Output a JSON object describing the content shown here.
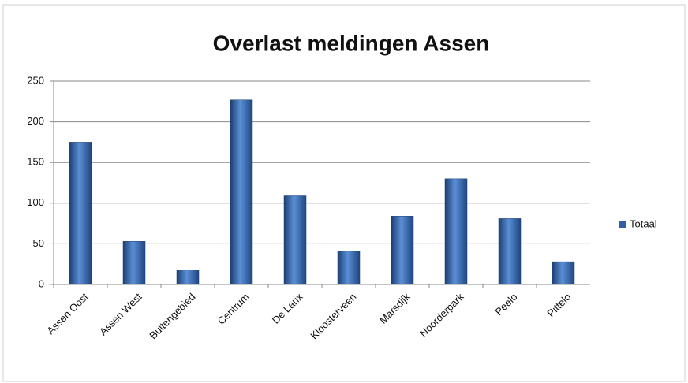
{
  "chart_data": {
    "type": "bar",
    "title": "Overlast meldingen Assen",
    "categories": [
      "Assen Oost",
      "Assen West",
      "Buitengebied",
      "Centrum",
      "De Larix",
      "Kloosterveen",
      "Marsdijk",
      "Noorderpark",
      "Peelo",
      "Pittelo"
    ],
    "series": [
      {
        "name": "Totaal",
        "color": "#2f5fa6",
        "values": [
          175,
          53,
          18,
          227,
          109,
          41,
          84,
          130,
          81,
          28
        ]
      }
    ],
    "ylim": [
      0,
      250
    ],
    "yticks": [
      0,
      50,
      100,
      150,
      200,
      250
    ],
    "grid": true,
    "legend": "right"
  }
}
